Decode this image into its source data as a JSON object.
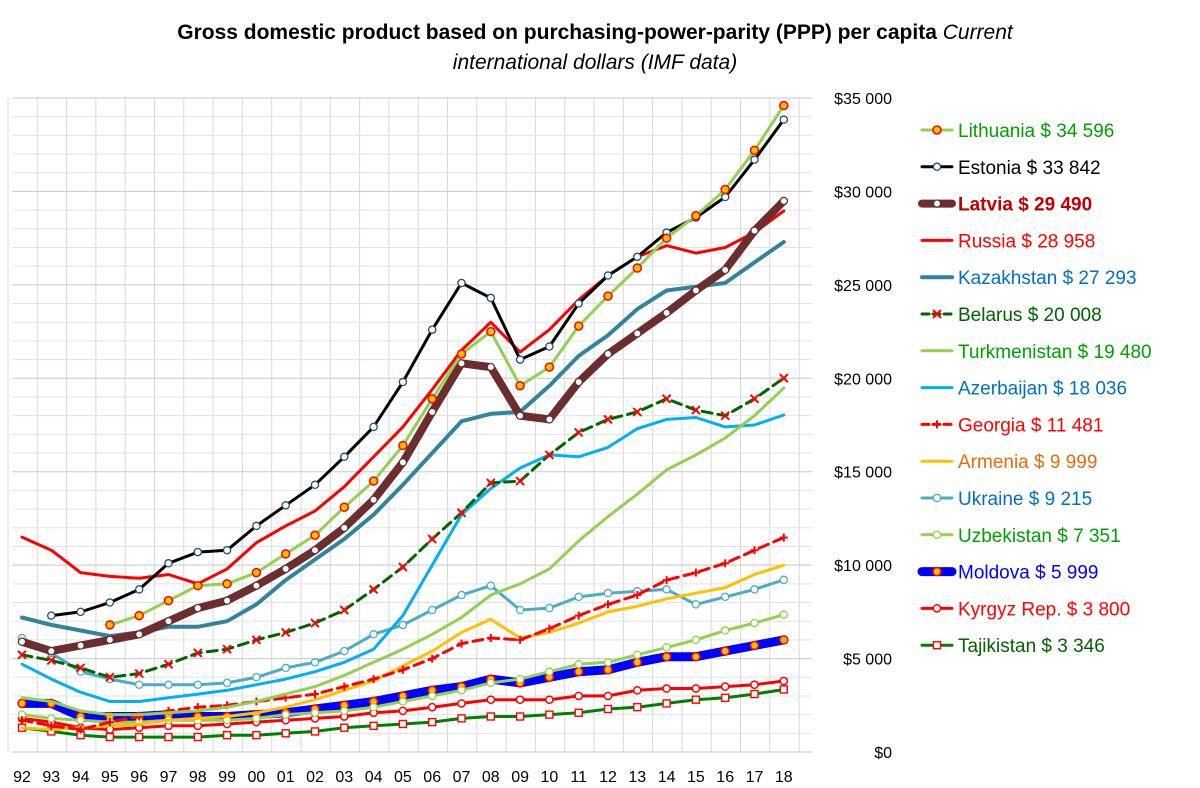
{
  "title": {
    "main": "Gross domestic product based on purchasing-power-parity (PPP) per capita",
    "sub": "Current international dollars (IMF data)"
  },
  "chart_data": {
    "type": "line",
    "title": "Gross domestic product based on purchasing-power-parity (PPP) per capita Current international dollars (IMF data)",
    "xlabel": "",
    "ylabel": "",
    "ylim": [
      0,
      35000
    ],
    "grid": true,
    "legend_position": "right",
    "x": [
      "92",
      "93",
      "94",
      "95",
      "96",
      "97",
      "98",
      "99",
      "00",
      "01",
      "02",
      "03",
      "04",
      "05",
      "06",
      "07",
      "08",
      "09",
      "10",
      "11",
      "12",
      "13",
      "14",
      "15",
      "16",
      "17",
      "18"
    ],
    "y_ticks": [
      {
        "value": 35000,
        "label": "$35 000"
      },
      {
        "value": 30000,
        "label": "$30 000"
      },
      {
        "value": 25000,
        "label": "$25 000"
      },
      {
        "value": 20000,
        "label": "$20 000"
      },
      {
        "value": 15000,
        "label": "$15 000"
      },
      {
        "value": 10000,
        "label": "$10 000"
      },
      {
        "value": 5000,
        "label": "$5 000"
      },
      {
        "value": 0,
        "label": "$0"
      }
    ],
    "series": [
      {
        "name": "Lithuania",
        "label": "Lithuania $ 34 596",
        "color": "#92d050",
        "label_color": "#00a000",
        "marker": "circle-orange",
        "width": 3,
        "values": [
          null,
          null,
          null,
          6800,
          7300,
          8100,
          8900,
          9000,
          9600,
          10600,
          11600,
          13100,
          14500,
          16400,
          18900,
          21300,
          22500,
          19600,
          20600,
          22800,
          24400,
          25900,
          27500,
          28700,
          30100,
          32200,
          34596
        ]
      },
      {
        "name": "Estonia",
        "label": "Estonia $ 33 842",
        "color": "#000000",
        "label_color": "#000000",
        "marker": "circle-white",
        "width": 3,
        "values": [
          null,
          7300,
          7500,
          8000,
          8700,
          10100,
          10700,
          10800,
          12100,
          13200,
          14300,
          15800,
          17400,
          19800,
          22600,
          25100,
          24300,
          21000,
          21700,
          24000,
          25500,
          26500,
          27800,
          28600,
          29700,
          31700,
          33842
        ]
      },
      {
        "name": "Latvia",
        "label": "Latvia $ 29 490",
        "color": "#6b2d2d",
        "label_color": "#c00000",
        "marker": "circle-white",
        "width": 8,
        "bold": true,
        "values": [
          5900,
          5400,
          5700,
          6000,
          6300,
          7000,
          7700,
          8100,
          8900,
          9800,
          10800,
          12000,
          13500,
          15500,
          18200,
          20800,
          20600,
          18000,
          17800,
          19800,
          21300,
          22400,
          23500,
          24700,
          25800,
          27900,
          29490
        ]
      },
      {
        "name": "Russia",
        "label": "Russia $ 28 958",
        "color": "#ff0000",
        "label_color": "#ff0000",
        "marker": "none",
        "width": 3,
        "values": [
          11500,
          10800,
          9600,
          9400,
          9300,
          9500,
          9000,
          9800,
          11200,
          12100,
          12900,
          14200,
          15800,
          17400,
          19400,
          21500,
          23000,
          21400,
          22600,
          24200,
          25500,
          26500,
          27100,
          26700,
          27000,
          27800,
          28958
        ]
      },
      {
        "name": "Kazakhstan",
        "label": "Kazakhstan $ 27 293",
        "color": "#31849b",
        "label_color": "#0070c0",
        "marker": "none",
        "width": 4,
        "values": [
          7200,
          6800,
          6500,
          6200,
          6400,
          6700,
          6700,
          7000,
          7900,
          9200,
          10300,
          11400,
          12700,
          14300,
          16000,
          17700,
          18100,
          18200,
          19600,
          21200,
          22300,
          23700,
          24700,
          24900,
          25100,
          26200,
          27293
        ]
      },
      {
        "name": "Belarus",
        "label": "Belarus $ 20 008",
        "color": "#006400",
        "label_color": "#006400",
        "marker": "x-red",
        "width": 3,
        "dash": "10,6",
        "values": [
          5200,
          4900,
          4500,
          4000,
          4200,
          4700,
          5300,
          5500,
          6000,
          6400,
          6900,
          7600,
          8700,
          9900,
          11400,
          12800,
          14400,
          14500,
          15900,
          17100,
          17800,
          18200,
          18900,
          18300,
          18000,
          18900,
          20008
        ]
      },
      {
        "name": "Turkmenistan",
        "label": "Turkmenistan $ 19 480",
        "color": "#92d050",
        "label_color": "#00a000",
        "marker": "none",
        "width": 3,
        "values": [
          2900,
          2700,
          2200,
          2000,
          2000,
          2100,
          2200,
          2400,
          2700,
          3100,
          3500,
          4100,
          4800,
          5500,
          6300,
          7200,
          8400,
          9000,
          9800,
          11300,
          12600,
          13800,
          15100,
          15900,
          16800,
          18000,
          19480
        ]
      },
      {
        "name": "Azerbaijan",
        "label": "Azerbaijan $ 18 036",
        "color": "#00b0f0",
        "label_color": "#0070c0",
        "marker": "none",
        "width": 3,
        "values": [
          4700,
          3900,
          3200,
          2700,
          2700,
          2900,
          3100,
          3300,
          3600,
          3900,
          4300,
          4800,
          5500,
          7300,
          10000,
          12700,
          14100,
          15200,
          15900,
          15800,
          16300,
          17300,
          17800,
          17900,
          17400,
          17500,
          18036
        ]
      },
      {
        "name": "Georgia",
        "label": "Georgia $ 11 481",
        "color": "#ff0000",
        "label_color": "#ff0000",
        "marker": "plus-red",
        "width": 3,
        "dash": "10,6",
        "values": [
          1700,
          1400,
          1200,
          1600,
          1900,
          2200,
          2400,
          2500,
          2700,
          2900,
          3100,
          3500,
          3900,
          4400,
          5000,
          5800,
          6100,
          6000,
          6600,
          7300,
          7900,
          8400,
          9200,
          9600,
          10100,
          10800,
          11481
        ]
      },
      {
        "name": "Armenia",
        "label": "Armenia $ 9 999",
        "color": "#ffc000",
        "label_color": "#e46c0a",
        "marker": "none",
        "width": 3,
        "values": [
          1300,
          1200,
          1300,
          1400,
          1500,
          1700,
          1800,
          1900,
          2100,
          2400,
          2800,
          3300,
          3800,
          4600,
          5400,
          6400,
          7100,
          6100,
          6400,
          6900,
          7500,
          7800,
          8200,
          8500,
          8800,
          9500,
          9999
        ]
      },
      {
        "name": "Ukraine",
        "label": "Ukraine $ 9 215",
        "color": "#4bacc6",
        "label_color": "#0070c0",
        "marker": "circle-white",
        "width": 3,
        "values": [
          6100,
          5300,
          4300,
          3900,
          3600,
          3600,
          3600,
          3700,
          4000,
          4500,
          4800,
          5400,
          6300,
          6800,
          7600,
          8400,
          8900,
          7600,
          7700,
          8300,
          8500,
          8600,
          8700,
          7900,
          8300,
          8700,
          9215
        ]
      },
      {
        "name": "Uzbekistan",
        "label": "Uzbekistan $ 7 351",
        "color": "#92d050",
        "label_color": "#00a000",
        "marker": "circle-white",
        "width": 3,
        "values": [
          2000,
          1800,
          1700,
          1600,
          1600,
          1700,
          1700,
          1700,
          1800,
          2000,
          2100,
          2200,
          2400,
          2700,
          3000,
          3300,
          3700,
          3900,
          4300,
          4700,
          4800,
          5200,
          5600,
          6000,
          6500,
          6900,
          7351
        ]
      },
      {
        "name": "Moldova",
        "label": "Moldova $ 5 999",
        "color": "#0000ff",
        "label_color": "#0000ff",
        "marker": "circle-orange",
        "width": 9,
        "bold": true,
        "values": [
          2600,
          2600,
          1900,
          1900,
          1900,
          2000,
          1900,
          1900,
          2000,
          2100,
          2300,
          2500,
          2700,
          3000,
          3300,
          3500,
          3900,
          3700,
          4000,
          4300,
          4400,
          4800,
          5100,
          5100,
          5400,
          5700,
          5999
        ]
      },
      {
        "name": "Kyrgyz Rep.",
        "label": "Kyrgyz Rep. $ 3 800",
        "color": "#ff0000",
        "label_color": "#ff0000",
        "marker": "circle-white-red",
        "width": 3,
        "values": [
          1800,
          1600,
          1300,
          1200,
          1300,
          1400,
          1400,
          1500,
          1600,
          1700,
          1800,
          1900,
          2100,
          2200,
          2400,
          2600,
          2800,
          2800,
          2800,
          3000,
          3000,
          3300,
          3400,
          3400,
          3500,
          3600,
          3800
        ]
      },
      {
        "name": "Tajikistan",
        "label": "Tajikistan $ 3 346",
        "color": "#008000",
        "label_color": "#006400",
        "marker": "square-white-red",
        "width": 3,
        "values": [
          1300,
          1100,
          900,
          800,
          800,
          800,
          800,
          900,
          900,
          1000,
          1100,
          1300,
          1400,
          1500,
          1600,
          1800,
          1900,
          1900,
          2000,
          2100,
          2300,
          2400,
          2600,
          2800,
          2900,
          3100,
          3346
        ]
      }
    ]
  }
}
